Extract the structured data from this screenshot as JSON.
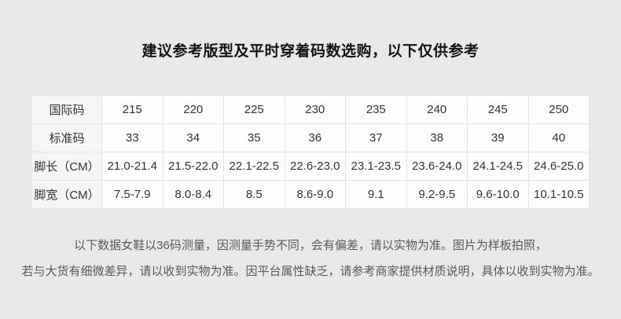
{
  "page": {
    "title": "建议参考版型及平时穿着码数选购，以下仅供参考"
  },
  "size_table": {
    "rows": [
      {
        "label": "国际码",
        "values": [
          "215",
          "220",
          "225",
          "230",
          "235",
          "240",
          "245",
          "250"
        ]
      },
      {
        "label": "标准码",
        "values": [
          "33",
          "34",
          "35",
          "36",
          "37",
          "38",
          "39",
          "40"
        ]
      },
      {
        "label": "脚长（CM）",
        "values": [
          "21.0-21.4",
          "21.5-22.0",
          "22.1-22.5",
          "22.6-23.0",
          "23.1-23.5",
          "23.6-24.0",
          "24.1-24.5",
          "24.6-25.0"
        ]
      },
      {
        "label": "脚宽（CM）",
        "values": [
          "7.5-7.9",
          "8.0-8.4",
          "8.5",
          "8.6-9.0",
          "9.1",
          "9.2-9.5",
          "9.6-10.0",
          "10.1-10.5"
        ]
      }
    ]
  },
  "footnote": {
    "line1": "以下数据女鞋以36码测量，因测量手势不同，会有偏差，请以实物为准。图片为样板拍照，",
    "line2": "若与大货有细微差异，请以收到实物为准。因平台属性缺乏，请参考商家提供材质说明，具体以收到实物为准。"
  },
  "colors": {
    "page_background": "#e9e9e9",
    "label_cell_background": "#f5f5f5",
    "data_cell_background": "#fdfdfd",
    "cell_border": "#e3e3e3",
    "title_text": "#141414",
    "table_text": "#333333",
    "footnote_text": "#595959"
  }
}
